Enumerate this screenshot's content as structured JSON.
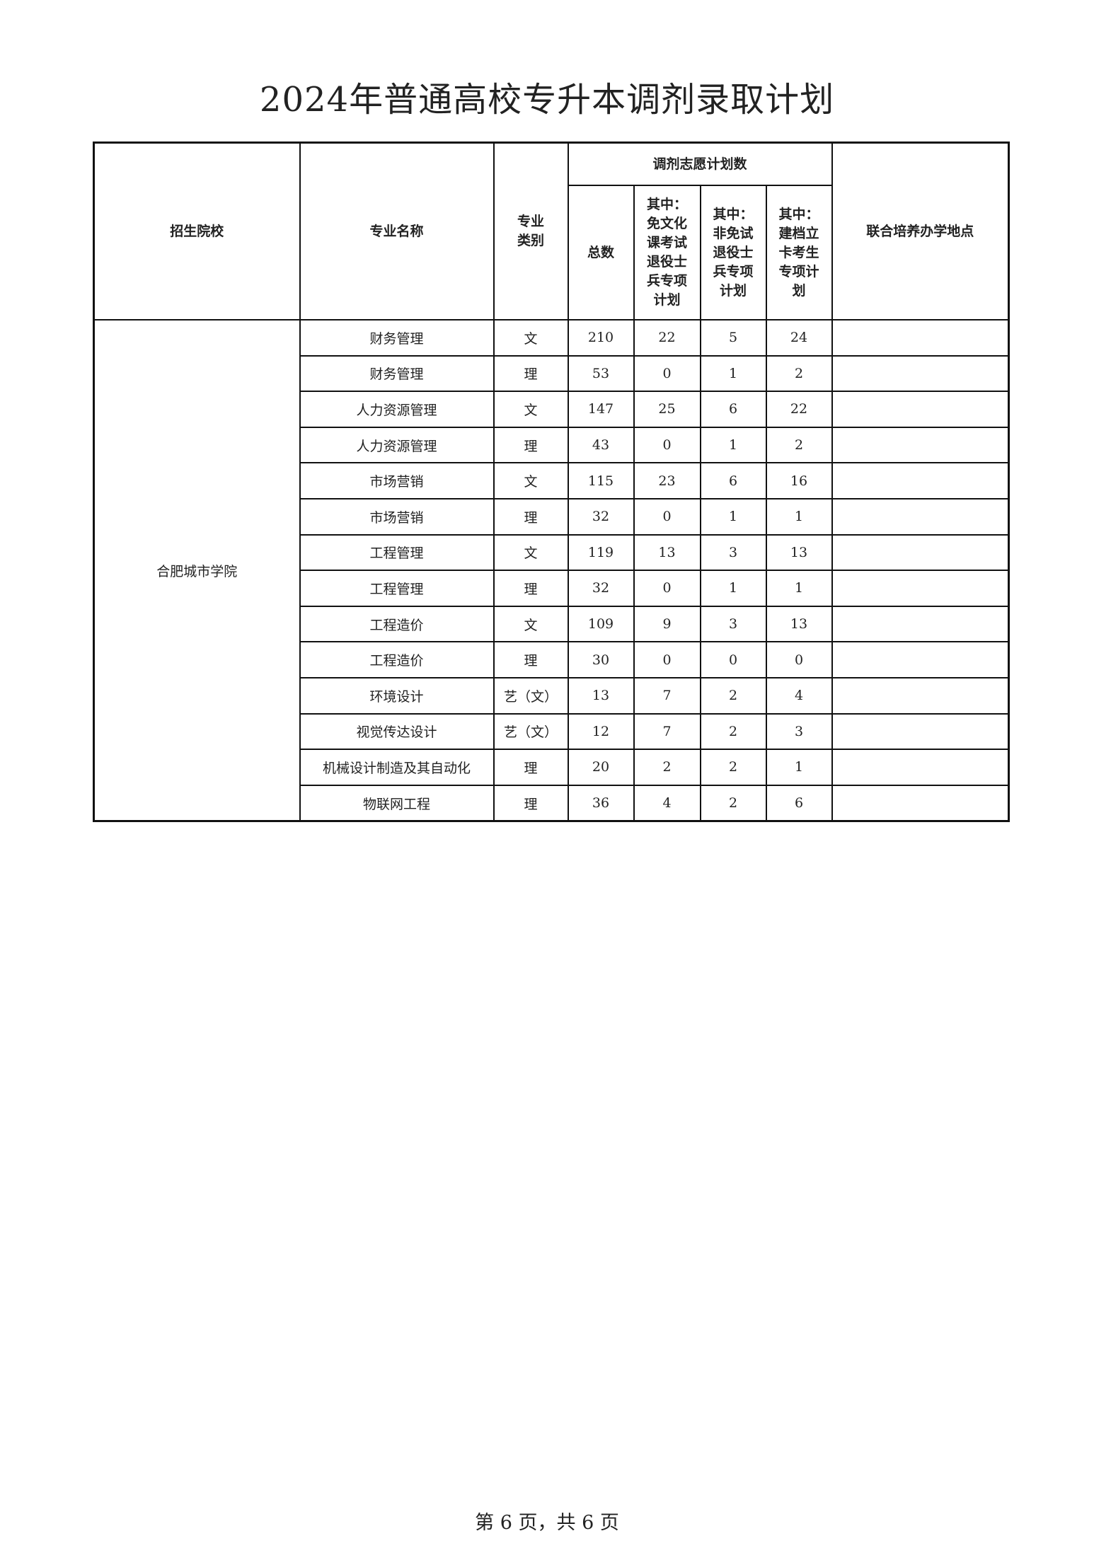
{
  "title": "2024年普通高校专升本调剂录取计划",
  "headers": {
    "school": "招生院校",
    "major": "专业名称",
    "category": "专业类别",
    "group": "调剂志愿计划数",
    "total": "总数",
    "sub1": "其中：免文化课考试退役士兵专项计划",
    "sub2": "其中：非免试退役士兵专项计划",
    "sub3": "其中：建档立卡考生专项计划",
    "location": "联合培养办学地点"
  },
  "school": "合肥城市学院",
  "rows": [
    {
      "major": "财务管理",
      "category": "文",
      "total": "210",
      "sub1": "22",
      "sub2": "5",
      "sub3": "24",
      "location": ""
    },
    {
      "major": "财务管理",
      "category": "理",
      "total": "53",
      "sub1": "0",
      "sub2": "1",
      "sub3": "2",
      "location": ""
    },
    {
      "major": "人力资源管理",
      "category": "文",
      "total": "147",
      "sub1": "25",
      "sub2": "6",
      "sub3": "22",
      "location": ""
    },
    {
      "major": "人力资源管理",
      "category": "理",
      "total": "43",
      "sub1": "0",
      "sub2": "1",
      "sub3": "2",
      "location": ""
    },
    {
      "major": "市场营销",
      "category": "文",
      "total": "115",
      "sub1": "23",
      "sub2": "6",
      "sub3": "16",
      "location": ""
    },
    {
      "major": "市场营销",
      "category": "理",
      "total": "32",
      "sub1": "0",
      "sub2": "1",
      "sub3": "1",
      "location": ""
    },
    {
      "major": "工程管理",
      "category": "文",
      "total": "119",
      "sub1": "13",
      "sub2": "3",
      "sub3": "13",
      "location": ""
    },
    {
      "major": "工程管理",
      "category": "理",
      "total": "32",
      "sub1": "0",
      "sub2": "1",
      "sub3": "1",
      "location": ""
    },
    {
      "major": "工程造价",
      "category": "文",
      "total": "109",
      "sub1": "9",
      "sub2": "3",
      "sub3": "13",
      "location": ""
    },
    {
      "major": "工程造价",
      "category": "理",
      "total": "30",
      "sub1": "0",
      "sub2": "0",
      "sub3": "0",
      "location": ""
    },
    {
      "major": "环境设计",
      "category": "艺（文）",
      "total": "13",
      "sub1": "7",
      "sub2": "2",
      "sub3": "4",
      "location": ""
    },
    {
      "major": "视觉传达设计",
      "category": "艺（文）",
      "total": "12",
      "sub1": "7",
      "sub2": "2",
      "sub3": "3",
      "location": ""
    },
    {
      "major": "机械设计制造及其自动化",
      "category": "理",
      "total": "20",
      "sub1": "2",
      "sub2": "2",
      "sub3": "1",
      "location": ""
    },
    {
      "major": "物联网工程",
      "category": "理",
      "total": "36",
      "sub1": "4",
      "sub2": "2",
      "sub3": "6",
      "location": ""
    }
  ],
  "footer": "第 6 页，共 6 页"
}
